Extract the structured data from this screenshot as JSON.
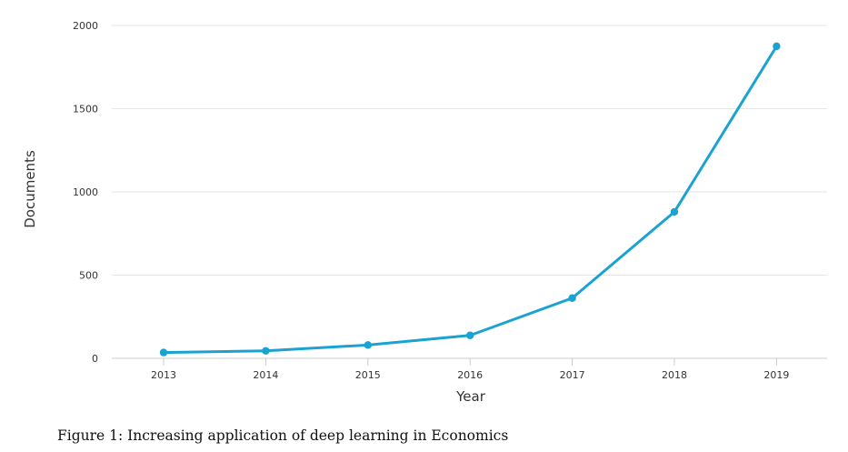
{
  "chart_data": {
    "type": "line",
    "x": [
      "2013",
      "2014",
      "2015",
      "2016",
      "2017",
      "2018",
      "2019"
    ],
    "series": [
      {
        "values": [
          35,
          45,
          80,
          138,
          362,
          880,
          1875
        ]
      }
    ],
    "xlabel": "Year",
    "ylabel": "Documents",
    "ylim": [
      0,
      2000
    ],
    "yticks": [
      "0",
      "500",
      "1000",
      "1500",
      "2000"
    ],
    "grid": "horizontal",
    "legend": "none",
    "line_color": "#1aa2d2",
    "grid_color": "#e6e6e6",
    "axis_color": "#cccccc"
  },
  "caption": "Figure 1: Increasing application of deep learning in Economics"
}
